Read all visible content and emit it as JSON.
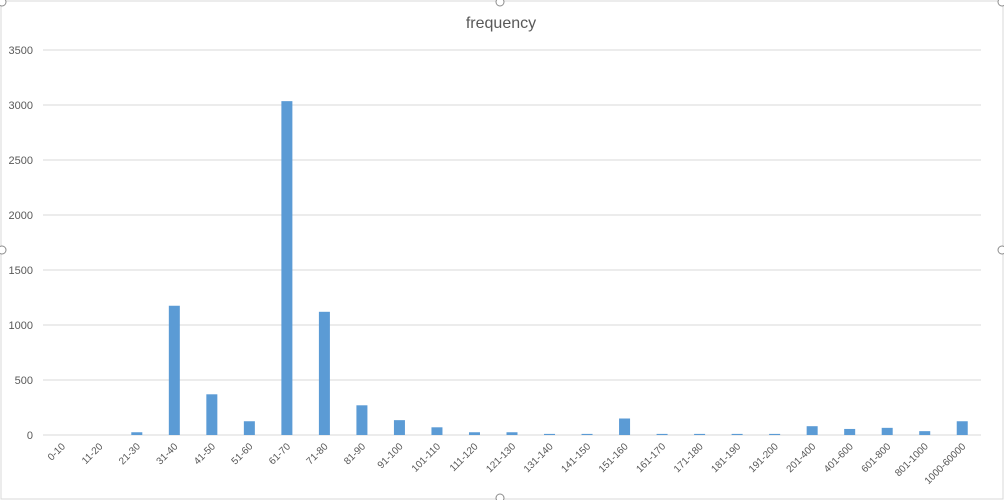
{
  "chart_data": {
    "type": "bar",
    "title": "frequency",
    "xlabel": "",
    "ylabel": "",
    "ylim": [
      0,
      3500
    ],
    "yticks": [
      0,
      500,
      1000,
      1500,
      2000,
      2500,
      3000,
      3500
    ],
    "grid": true,
    "legend": "none",
    "bar_color": "#5b9bd5",
    "categories": [
      "0-10",
      "11-20",
      "21-30",
      "31-40",
      "41-50",
      "51-60",
      "61-70",
      "71-80",
      "81-90",
      "91-100",
      "101-110",
      "111-120",
      "121-130",
      "131-140",
      "141-150",
      "151-160",
      "161-170",
      "171-180",
      "181-190",
      "191-200",
      "201-400",
      "401-600",
      "601-800",
      "801-1000",
      "1000-60000"
    ],
    "values": [
      0,
      0,
      25,
      1175,
      370,
      125,
      3035,
      1120,
      270,
      135,
      70,
      25,
      25,
      10,
      10,
      150,
      10,
      10,
      10,
      10,
      80,
      55,
      65,
      35,
      125
    ]
  }
}
